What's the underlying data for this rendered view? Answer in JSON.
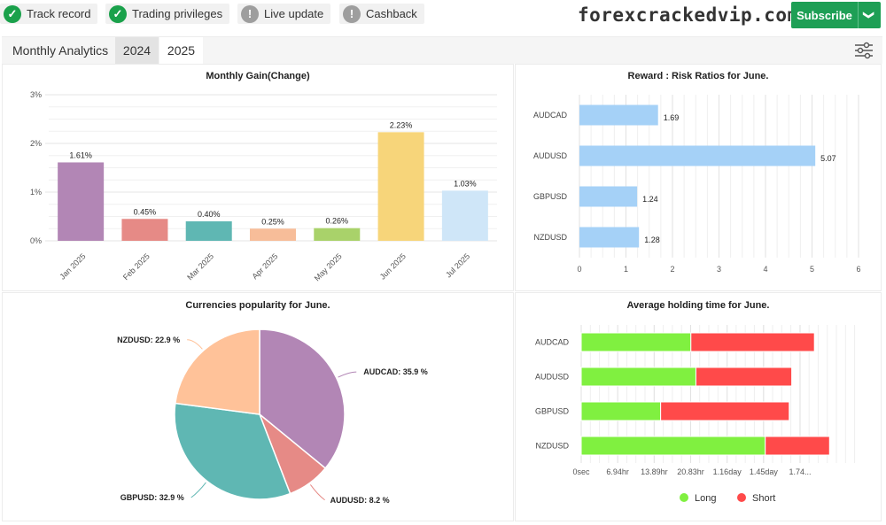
{
  "badges": [
    {
      "label": "Track record",
      "icon": "check-circle-icon",
      "status": "ok"
    },
    {
      "label": "Trading privileges",
      "icon": "check-circle-icon",
      "status": "ok"
    },
    {
      "label": "Live update",
      "icon": "exclamation-circle-icon",
      "status": "warn"
    },
    {
      "label": "Cashback",
      "icon": "exclamation-circle-icon",
      "status": "warn"
    }
  ],
  "brand": "forexcrackedvip.com",
  "subscribe": {
    "label": "Subscribe",
    "caret": "❯"
  },
  "tabs": {
    "title": "Monthly Analytics",
    "years": [
      "2024",
      "2025"
    ],
    "selected": "2025"
  },
  "colors": {
    "accent": "#1e9f55",
    "long": "#80f040",
    "short": "#ff4a4a",
    "bar_blue": "#a5d1f7"
  },
  "chart_data": [
    {
      "type": "bar",
      "title": "Monthly Gain(Change)",
      "categories": [
        "Jan 2025",
        "Feb 2025",
        "Mar 2025",
        "Apr 2025",
        "May 2025",
        "Jun 2025",
        "Jul 2025"
      ],
      "values": [
        1.61,
        0.45,
        0.4,
        0.25,
        0.26,
        2.23,
        1.03
      ],
      "labels": [
        "1.61%",
        "0.45%",
        "0.40%",
        "0.25%",
        "0.26%",
        "2.23%",
        "1.03%"
      ],
      "colors": [
        "#b286b5",
        "#e68a86",
        "#5fb7b3",
        "#f7bd99",
        "#a9d26a",
        "#f7d57a",
        "#cfe6f8"
      ],
      "yticks": [
        "0%",
        "1%",
        "2%",
        "3%"
      ],
      "ylim": [
        0,
        3
      ]
    },
    {
      "type": "bar",
      "orientation": "horizontal",
      "title": "Reward : Risk Ratios for June.",
      "categories": [
        "AUDCAD",
        "AUDUSD",
        "GBPUSD",
        "NZDUSD"
      ],
      "values": [
        1.69,
        5.07,
        1.24,
        1.28
      ],
      "labels": [
        "1.69",
        "5.07",
        "1.24",
        "1.28"
      ],
      "xticks": [
        "0",
        "1",
        "2",
        "3",
        "4",
        "5",
        "6"
      ],
      "xlim": [
        0,
        6
      ]
    },
    {
      "type": "pie",
      "title": "Currencies popularity for June.",
      "slices": [
        {
          "name": "AUDCAD",
          "value": 35.9,
          "label": "AUDCAD: 35.9 %",
          "color": "#b286b5"
        },
        {
          "name": "AUDUSD",
          "value": 8.2,
          "label": "AUDUSD: 8.2 %",
          "color": "#e68a86"
        },
        {
          "name": "GBPUSD",
          "value": 32.9,
          "label": "GBPUSD: 32.9 %",
          "color": "#5fb7b3"
        },
        {
          "name": "NZDUSD",
          "value": 22.9,
          "label": "NZDUSD: 22.9 %",
          "color": "#ffc299"
        }
      ]
    },
    {
      "type": "bar",
      "orientation": "horizontal",
      "stacked": true,
      "title": "Average holding time for June.",
      "categories": [
        "AUDCAD",
        "AUDUSD",
        "GBPUSD",
        "NZDUSD"
      ],
      "series": [
        {
          "name": "Long",
          "values_days": [
            0.87,
            0.91,
            0.63,
            1.46
          ]
        },
        {
          "name": "Short",
          "values_days": [
            0.98,
            0.76,
            1.02,
            0.51
          ]
        }
      ],
      "xticks": [
        "0sec",
        "6.94hr",
        "13.89hr",
        "20.83hr",
        "1.16day",
        "1.45day",
        "1.74..."
      ],
      "xlim_days": [
        0,
        2.2
      ],
      "legend_position": "bottom"
    }
  ]
}
